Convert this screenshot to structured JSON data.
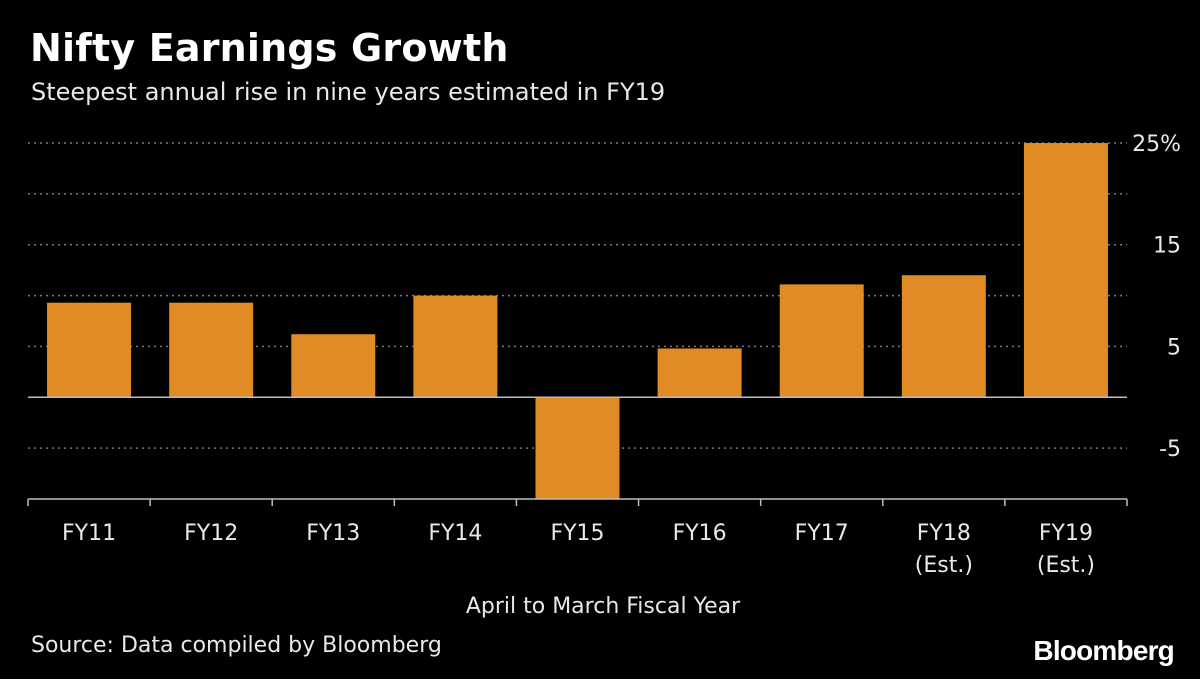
{
  "header": {
    "title": "Nifty Earnings Growth",
    "subtitle": "Steepest annual rise in nine years estimated in FY19"
  },
  "footer": {
    "source": "Source: Data compiled by Bloomberg",
    "brand": "Bloomberg"
  },
  "colors": {
    "background": "#000000",
    "bar": "#e08b24",
    "grid": "#7a7a7a",
    "text": "#ffffff"
  },
  "chart_data": {
    "type": "bar",
    "title": "Nifty Earnings Growth",
    "subtitle": "Steepest annual rise in nine years estimated in FY19",
    "xlabel": "April to March Fiscal Year",
    "ylabel": "",
    "categories": [
      "FY11",
      "FY12",
      "FY13",
      "FY14",
      "FY15",
      "FY16",
      "FY17",
      "FY18\n(Est.)",
      "FY19\n(Est.)"
    ],
    "values": [
      9.3,
      9.3,
      6.2,
      10.0,
      -10.0,
      4.8,
      11.1,
      12.0,
      25.0
    ],
    "ylim": [
      -10,
      25
    ],
    "yticks": [
      -5,
      5,
      15,
      25
    ],
    "ytick_labels": [
      "-5",
      "5",
      "15",
      "25%"
    ],
    "grid": true,
    "y_axis_position": "right"
  }
}
